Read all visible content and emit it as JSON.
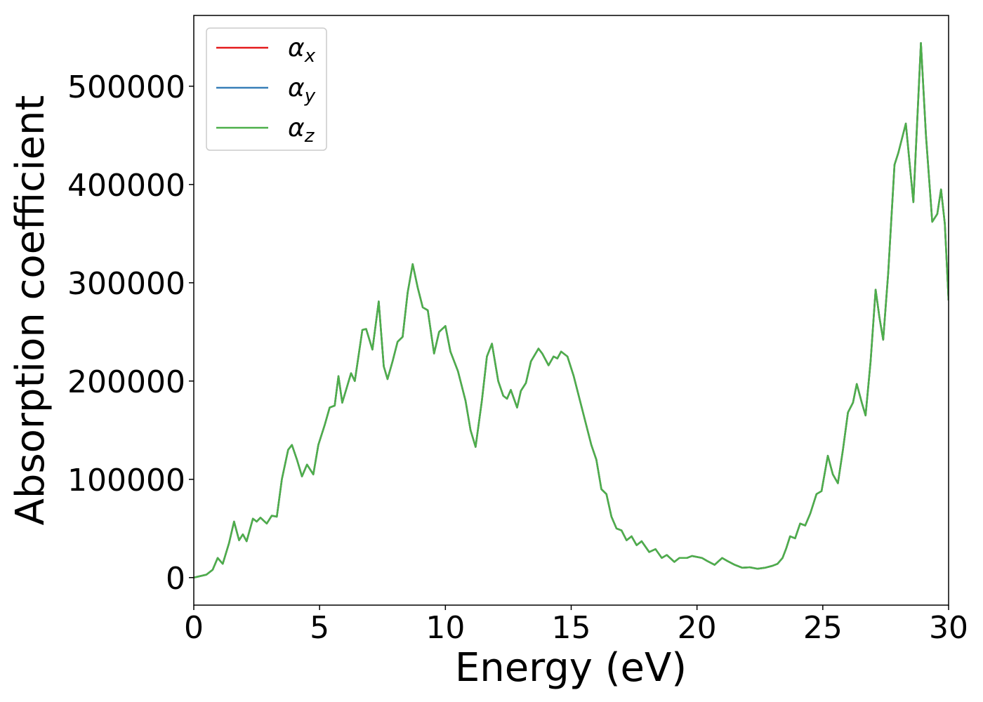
{
  "chart_data": {
    "type": "line",
    "xlabel": "Energy (eV)",
    "ylabel": "Absorption coefficient",
    "xlim": [
      0,
      30
    ],
    "ylim": [
      -28000,
      572000
    ],
    "xticks": [
      0,
      5,
      10,
      15,
      20,
      25,
      30
    ],
    "yticks": [
      0,
      100000,
      200000,
      300000,
      400000,
      500000
    ],
    "legend": "upper left",
    "x": [
      0,
      0.5,
      0.75,
      0.95,
      1.15,
      1.4,
      1.6,
      1.8,
      1.95,
      2.1,
      2.35,
      2.5,
      2.65,
      2.9,
      3.1,
      3.3,
      3.5,
      3.75,
      3.9,
      4.1,
      4.3,
      4.5,
      4.75,
      4.95,
      5.2,
      5.4,
      5.6,
      5.75,
      5.9,
      6.1,
      6.25,
      6.4,
      6.7,
      6.85,
      7.1,
      7.35,
      7.55,
      7.7,
      7.9,
      8.1,
      8.3,
      8.5,
      8.7,
      8.9,
      9.1,
      9.3,
      9.55,
      9.75,
      10.0,
      10.2,
      10.5,
      10.8,
      11.0,
      11.2,
      11.45,
      11.65,
      11.85,
      12.1,
      12.3,
      12.45,
      12.6,
      12.85,
      13.0,
      13.2,
      13.4,
      13.7,
      13.85,
      14.1,
      14.3,
      14.45,
      14.6,
      14.85,
      15.1,
      15.4,
      15.6,
      15.8,
      16.0,
      16.2,
      16.4,
      16.6,
      16.8,
      17.0,
      17.2,
      17.4,
      17.6,
      17.8,
      18.1,
      18.35,
      18.6,
      18.8,
      19.1,
      19.3,
      19.6,
      19.8,
      20.0,
      20.2,
      20.4,
      20.7,
      21.0,
      21.2,
      21.5,
      21.8,
      22.1,
      22.4,
      22.7,
      23.0,
      23.2,
      23.4,
      23.55,
      23.7,
      23.9,
      24.1,
      24.3,
      24.5,
      24.75,
      24.95,
      25.2,
      25.4,
      25.6,
      25.8,
      26.0,
      26.2,
      26.35,
      26.55,
      26.7,
      26.9,
      27.1,
      27.25,
      27.4,
      27.6,
      27.85,
      28.0,
      28.3,
      28.6,
      28.9,
      29.1,
      29.35,
      29.55,
      29.7,
      29.85,
      30.0
    ],
    "series": [
      {
        "name": "αx",
        "color": "#e41a1c",
        "values": [
          0,
          3000,
          8000,
          20000,
          14000,
          35000,
          57000,
          38000,
          44000,
          37000,
          60000,
          57000,
          61000,
          55000,
          63000,
          62000,
          100000,
          130000,
          135000,
          120000,
          103000,
          115000,
          105000,
          135000,
          155000,
          173000,
          175000,
          205000,
          178000,
          195000,
          208000,
          200000,
          252000,
          253000,
          232000,
          281000,
          215000,
          202000,
          220000,
          240000,
          245000,
          290000,
          319000,
          295000,
          275000,
          272000,
          228000,
          250000,
          256000,
          230000,
          210000,
          180000,
          150000,
          133000,
          180000,
          225000,
          238000,
          200000,
          185000,
          182000,
          191000,
          173000,
          190000,
          198000,
          220000,
          233000,
          228000,
          216000,
          225000,
          223000,
          230000,
          225000,
          205000,
          175000,
          155000,
          135000,
          120000,
          90000,
          85000,
          62000,
          50000,
          48000,
          38000,
          42000,
          33000,
          37000,
          26000,
          29000,
          20000,
          23000,
          16000,
          20000,
          20000,
          22000,
          21000,
          20000,
          17000,
          13000,
          20000,
          17000,
          13000,
          10000,
          10500,
          9000,
          10000,
          12000,
          14000,
          20000,
          30000,
          42000,
          40000,
          55000,
          53000,
          65000,
          85000,
          88000,
          124000,
          105000,
          96000,
          130000,
          168000,
          178000,
          197000,
          178000,
          165000,
          220000,
          293000,
          265000,
          242000,
          310000,
          420000,
          432000,
          462000,
          382000,
          544000,
          450000,
          362000,
          370000,
          395000,
          360000,
          282000
        ]
      },
      {
        "name": "αy",
        "color": "#377eb8",
        "values": [
          0,
          3000,
          8000,
          20000,
          14000,
          35000,
          57000,
          38000,
          44000,
          37000,
          60000,
          57000,
          61000,
          55000,
          63000,
          62000,
          100000,
          130000,
          135000,
          120000,
          103000,
          115000,
          105000,
          135000,
          155000,
          173000,
          175000,
          205000,
          178000,
          195000,
          208000,
          200000,
          252000,
          253000,
          232000,
          281000,
          215000,
          202000,
          220000,
          240000,
          245000,
          290000,
          319000,
          295000,
          275000,
          272000,
          228000,
          250000,
          256000,
          230000,
          210000,
          180000,
          150000,
          133000,
          180000,
          225000,
          238000,
          200000,
          185000,
          182000,
          191000,
          173000,
          190000,
          198000,
          220000,
          233000,
          228000,
          216000,
          225000,
          223000,
          230000,
          225000,
          205000,
          175000,
          155000,
          135000,
          120000,
          90000,
          85000,
          62000,
          50000,
          48000,
          38000,
          42000,
          33000,
          37000,
          26000,
          29000,
          20000,
          23000,
          16000,
          20000,
          20000,
          22000,
          21000,
          20000,
          17000,
          13000,
          20000,
          17000,
          13000,
          10000,
          10500,
          9000,
          10000,
          12000,
          14000,
          20000,
          30000,
          42000,
          40000,
          55000,
          53000,
          65000,
          85000,
          88000,
          124000,
          105000,
          96000,
          130000,
          168000,
          178000,
          197000,
          178000,
          165000,
          220000,
          293000,
          265000,
          242000,
          310000,
          420000,
          432000,
          462000,
          382000,
          544000,
          450000,
          362000,
          370000,
          395000,
          360000,
          282000
        ]
      },
      {
        "name": "αz",
        "color": "#4daf4a",
        "values": [
          0,
          3000,
          8000,
          20000,
          14000,
          35000,
          57000,
          38000,
          44000,
          37000,
          60000,
          57000,
          61000,
          55000,
          63000,
          62000,
          100000,
          130000,
          135000,
          120000,
          103000,
          115000,
          105000,
          135000,
          155000,
          173000,
          175000,
          205000,
          178000,
          195000,
          208000,
          200000,
          252000,
          253000,
          232000,
          281000,
          215000,
          202000,
          220000,
          240000,
          245000,
          290000,
          319000,
          295000,
          275000,
          272000,
          228000,
          250000,
          256000,
          230000,
          210000,
          180000,
          150000,
          133000,
          180000,
          225000,
          238000,
          200000,
          185000,
          182000,
          191000,
          173000,
          190000,
          198000,
          220000,
          233000,
          228000,
          216000,
          225000,
          223000,
          230000,
          225000,
          205000,
          175000,
          155000,
          135000,
          120000,
          90000,
          85000,
          62000,
          50000,
          48000,
          38000,
          42000,
          33000,
          37000,
          26000,
          29000,
          20000,
          23000,
          16000,
          20000,
          20000,
          22000,
          21000,
          20000,
          17000,
          13000,
          20000,
          17000,
          13000,
          10000,
          10500,
          9000,
          10000,
          12000,
          14000,
          20000,
          30000,
          42000,
          40000,
          55000,
          53000,
          65000,
          85000,
          88000,
          124000,
          105000,
          96000,
          130000,
          168000,
          178000,
          197000,
          178000,
          165000,
          220000,
          293000,
          265000,
          242000,
          310000,
          420000,
          432000,
          462000,
          382000,
          544000,
          450000,
          362000,
          370000,
          395000,
          360000,
          282000
        ]
      }
    ]
  }
}
